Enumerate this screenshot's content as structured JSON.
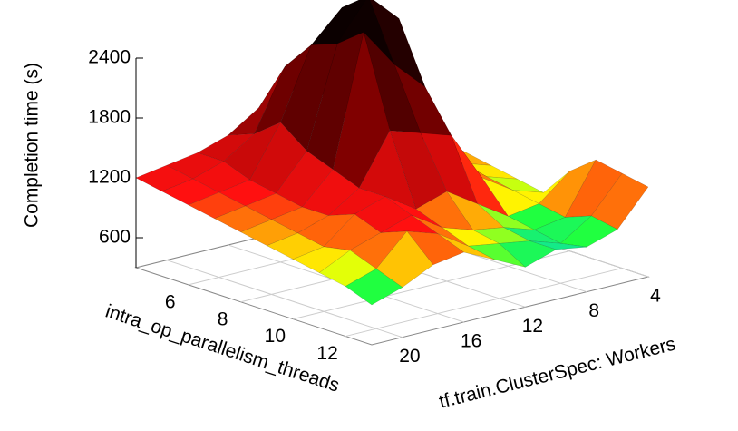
{
  "chart_data": {
    "type": "surface3d",
    "zlabel": "Completion time (s)",
    "xlabel": "tf.train.ClusterSpec: Workers",
    "ylabel": "intra_op_parallelism_threads",
    "x": [
      4,
      6,
      8,
      10,
      12,
      14,
      16,
      18,
      20,
      22
    ],
    "y": [
      4,
      5,
      6,
      7,
      8,
      9,
      10,
      11,
      12,
      13
    ],
    "z": [
      [
        1000,
        1100,
        1300,
        1600,
        1700,
        1600,
        1400,
        1300,
        1250,
        1200
      ],
      [
        1000,
        1150,
        1500,
        2000,
        2200,
        2100,
        1500,
        1300,
        1200,
        1150
      ],
      [
        950,
        1100,
        1400,
        2300,
        2700,
        2400,
        1700,
        1200,
        1150,
        1100
      ],
      [
        900,
        1000,
        1300,
        2600,
        2900,
        2500,
        1500,
        1150,
        1100,
        1050
      ],
      [
        850,
        950,
        1200,
        2000,
        2300,
        2700,
        1400,
        1100,
        1050,
        1000
      ],
      [
        800,
        900,
        1100,
        1600,
        1700,
        1800,
        1300,
        1100,
        1000,
        950
      ],
      [
        1100,
        850,
        800,
        1000,
        1200,
        1100,
        1300,
        1200,
        950,
        900
      ],
      [
        1300,
        800,
        750,
        850,
        900,
        1000,
        1200,
        1100,
        1000,
        850
      ],
      [
        1250,
        900,
        700,
        800,
        850,
        900,
        1100,
        1200,
        900,
        800
      ],
      [
        1200,
        850,
        750,
        800,
        700,
        850,
        1000,
        950,
        800,
        700
      ]
    ],
    "xlim": [
      4,
      22
    ],
    "ylim": [
      4,
      13
    ],
    "zlim": [
      300,
      2400
    ],
    "xticks": [
      4,
      8,
      12,
      16,
      20
    ],
    "yticks": [
      6,
      8,
      10,
      12
    ],
    "zticks": [
      600,
      1200,
      1800,
      2400
    ],
    "grid": true,
    "colormap": [
      {
        "value": 700,
        "color": "#00c8ff"
      },
      {
        "value": 800,
        "color": "#20ff40"
      },
      {
        "value": 900,
        "color": "#ffff00"
      },
      {
        "value": 1150,
        "color": "#ff1010"
      },
      {
        "value": 1800,
        "color": "#800000"
      },
      {
        "value": 2700,
        "color": "#000000"
      }
    ]
  }
}
